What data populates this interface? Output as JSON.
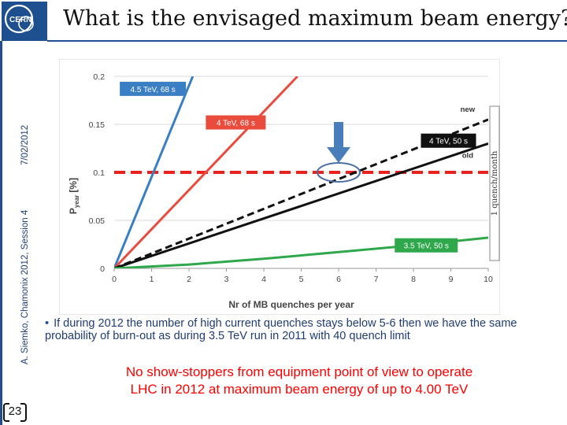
{
  "slide": {
    "title": "What is the envisaged maximum beam energy?",
    "date": "7/02/2012",
    "author": "A. Siemko, Chamonix 2012, Session 4",
    "page_number": "23",
    "bullet": "If during 2012 the number of high current quenches stays below 5-6 then we have the same probability of burn-out as during 3.5 TeV run in 2011 with 40 quench limit",
    "conclusion_line1": "No show-stoppers from equipment point of view to operate",
    "conclusion_line2": "LHC in 2012 at maximum beam energy of up to 4.00 TeV"
  },
  "chart_data": {
    "type": "line",
    "title": "",
    "xlabel": "Nr of MB quenches per year",
    "ylabel": "P",
    "ylabel_sub": "year",
    "ylabel_unit": "[%]",
    "xlim": [
      0,
      10
    ],
    "ylim": [
      0,
      0.2
    ],
    "x_ticks": [
      "0",
      "1",
      "2",
      "3",
      "4",
      "5",
      "6",
      "7",
      "8",
      "9",
      "10"
    ],
    "y_ticks": [
      "0",
      "0.05",
      "0.1",
      "0.15",
      "0.2"
    ],
    "series": [
      {
        "name": "4.5 TeV, 68 s",
        "color": "#3a7fc4",
        "style": "solid",
        "points": [
          [
            0,
            0
          ],
          [
            2.1,
            0.2
          ]
        ]
      },
      {
        "name": "4 TeV, 68 s",
        "color": "#e94b3c",
        "style": "solid",
        "points": [
          [
            0,
            0
          ],
          [
            4.9,
            0.2
          ]
        ]
      },
      {
        "name": "4 TeV, 50 s new",
        "color": "#111111",
        "style": "dashed",
        "points": [
          [
            0,
            0
          ],
          [
            10,
            0.155
          ]
        ]
      },
      {
        "name": "4 TeV, 50 s old",
        "color": "#111111",
        "style": "solid",
        "points": [
          [
            0,
            0
          ],
          [
            10,
            0.13
          ]
        ]
      },
      {
        "name": "3.5 TeV, 50 s",
        "color": "#2ea84a",
        "style": "solid",
        "points": [
          [
            0,
            0
          ],
          [
            2,
            0.004
          ],
          [
            4,
            0.01
          ],
          [
            6,
            0.017
          ],
          [
            8,
            0.024
          ],
          [
            10,
            0.032
          ]
        ]
      }
    ],
    "reference_line": {
      "label": "1 quench/month",
      "y": 0.1,
      "color": "#e8231f",
      "style": "dashed"
    },
    "labels": [
      {
        "text": "4.5 TeV, 68 s",
        "bg": "#3a7fc4",
        "color": "#ffffff"
      },
      {
        "text": "4 TeV, 68 s",
        "bg": "#e94b3c",
        "color": "#ffffff"
      },
      {
        "text": "4 TeV, 50 s",
        "bg": "#111111",
        "color": "#ffffff"
      },
      {
        "text": "3.5 TeV, 50 s",
        "bg": "#2ea84a",
        "color": "#ffffff"
      }
    ],
    "annotations": [
      "new",
      "old"
    ],
    "marker_x": 6,
    "marker_y": 0.1
  }
}
